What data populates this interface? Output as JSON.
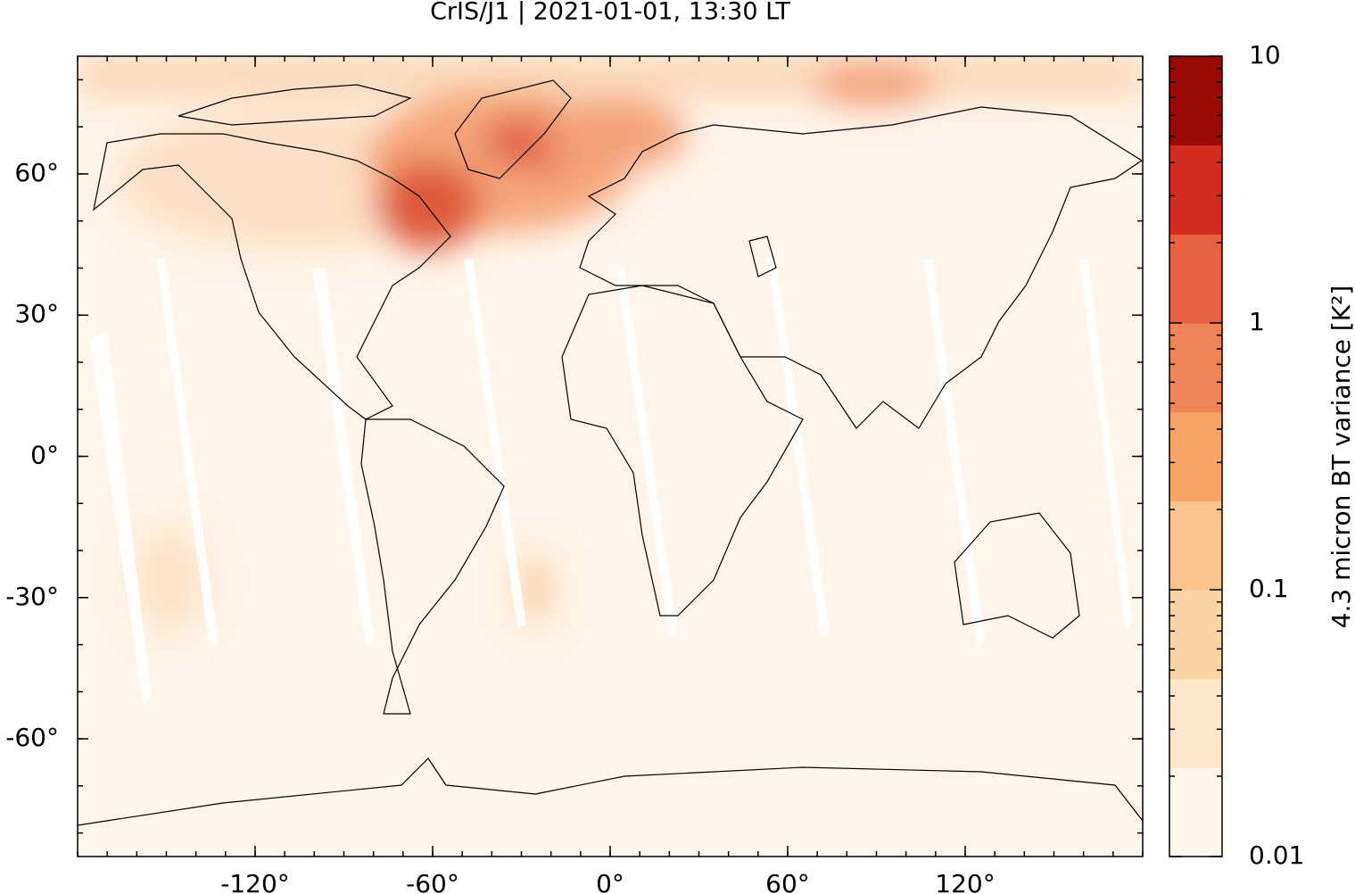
{
  "chart_data": {
    "type": "map",
    "title": "CrIS/J1 | 2021-01-01, 13:30 LT",
    "xlim": [
      -180,
      180
    ],
    "ylim": [
      -85,
      85
    ],
    "xticks": [
      {
        "value": -120,
        "label": "-120°"
      },
      {
        "value": -60,
        "label": "-60°"
      },
      {
        "value": 0,
        "label": "0°"
      },
      {
        "value": 60,
        "label": "60°"
      },
      {
        "value": 120,
        "label": "120°"
      }
    ],
    "yticks": [
      {
        "value": -60,
        "label": "-60°"
      },
      {
        "value": -30,
        "label": "-30°"
      },
      {
        "value": 0,
        "label": "0°"
      },
      {
        "value": 30,
        "label": "30°"
      },
      {
        "value": 60,
        "label": "60°"
      }
    ],
    "colorbar": {
      "label": "4.3 micron BT variance [K²]",
      "log": true,
      "lim": [
        0.01,
        10
      ],
      "ticks": [
        0.01,
        0.1,
        1,
        10
      ],
      "colors": [
        "#fff5ea",
        "#fde7cc",
        "#fad4a4",
        "#fbc38c",
        "#f8a468",
        "#f08456",
        "#e8603f",
        "#d42d20",
        "#9b0a04"
      ]
    }
  }
}
